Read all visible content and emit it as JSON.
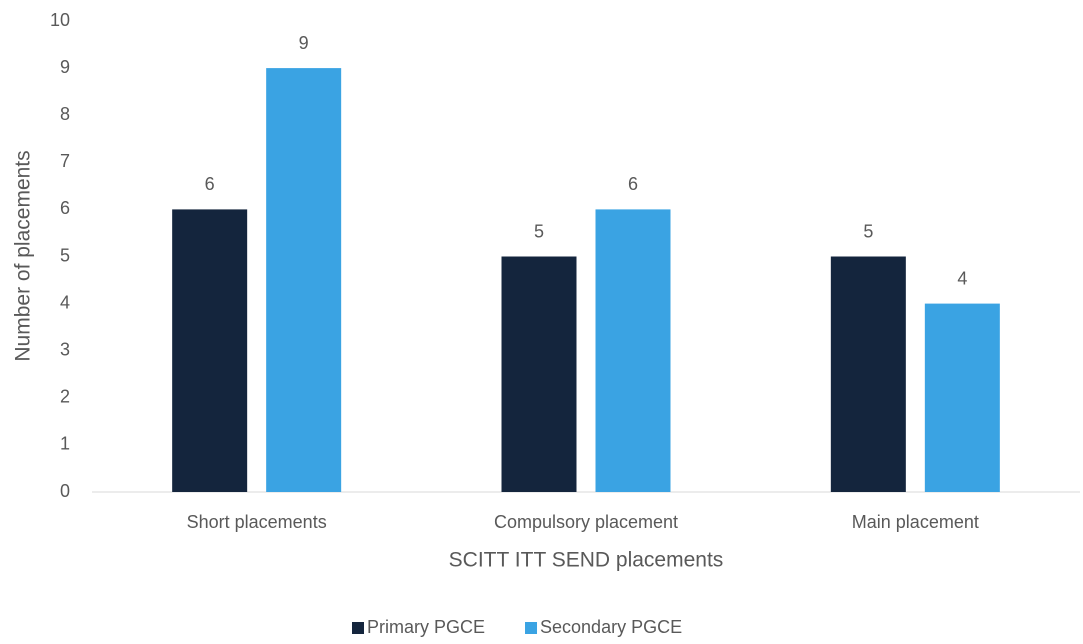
{
  "chart_data": {
    "type": "bar",
    "x_label": "SCITT ITT SEND placements",
    "y_label": "Number of placements",
    "categories": [
      "Short placements",
      "Compulsory placement",
      "Main placement"
    ],
    "series": [
      {
        "name": "Primary PGCE",
        "color": "#14253d",
        "values": [
          6,
          5,
          5
        ]
      },
      {
        "name": "Secondary PGCE",
        "color": "#3aa3e3",
        "values": [
          9,
          6,
          4
        ]
      }
    ],
    "ylim": [
      0,
      10
    ],
    "yticks": [
      0,
      1,
      2,
      3,
      4,
      5,
      6,
      7,
      8,
      9,
      10
    ],
    "grid": false,
    "data_labels": true,
    "legend": "bottom"
  }
}
